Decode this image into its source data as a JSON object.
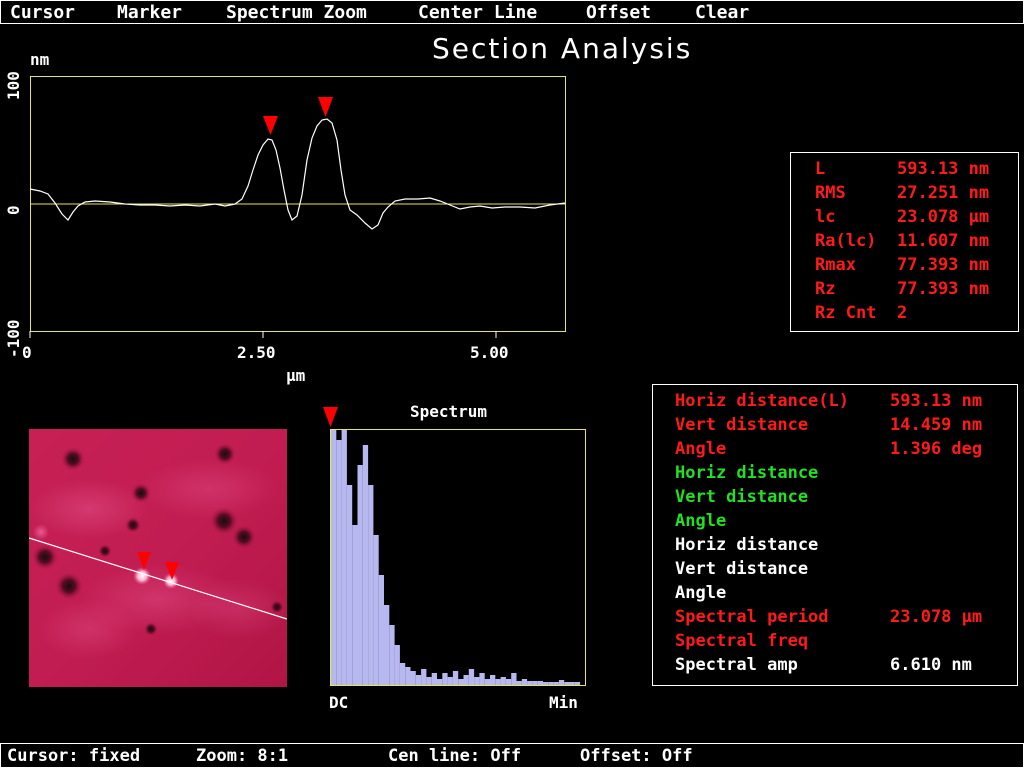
{
  "menu": [
    {
      "label": "Cursor"
    },
    {
      "label": "Marker"
    },
    {
      "label": "Spectrum Zoom"
    },
    {
      "label": "Center Line"
    },
    {
      "label": "Offset"
    },
    {
      "label": "Clear"
    }
  ],
  "title": "Section Analysis",
  "profile": {
    "yunit": "nm",
    "xunit": "µm",
    "yticks": [
      "100",
      "0",
      "-100"
    ],
    "xticks": [
      "0",
      "2.50",
      "5.00"
    ],
    "line_color": "#ffffff",
    "axis_color": "#e6e65a",
    "marker_color": "#ff0000"
  },
  "stats": [
    {
      "label": "L",
      "value": "593.13 nm"
    },
    {
      "label": "RMS",
      "value": "27.251 nm"
    },
    {
      "label": "lc",
      "value": "23.078 µm"
    },
    {
      "label": "Ra(lc)",
      "value": "11.607 nm"
    },
    {
      "label": "Rmax",
      "value": "77.393 nm"
    },
    {
      "label": "Rz",
      "value": "77.393 nm"
    },
    {
      "label": "Rz Cnt",
      "value": "2"
    }
  ],
  "spectrum": {
    "title": "Spectrum",
    "xlabel_left": "DC",
    "xlabel_right": "Min",
    "bar_color": "#b8b8f0"
  },
  "measurements": [
    {
      "label": "Horiz distance(L)",
      "value": "593.13 nm",
      "color": "red"
    },
    {
      "label": "Vert distance",
      "value": "14.459 nm",
      "color": "red"
    },
    {
      "label": "Angle",
      "value": "1.396 deg",
      "color": "red"
    },
    {
      "label": "Horiz distance",
      "value": "",
      "color": "green"
    },
    {
      "label": "Vert distance",
      "value": "",
      "color": "green"
    },
    {
      "label": "Angle",
      "value": "",
      "color": "green"
    },
    {
      "label": "Horiz distance",
      "value": "",
      "color": "white"
    },
    {
      "label": "Vert distance",
      "value": "",
      "color": "white"
    },
    {
      "label": "Angle",
      "value": "",
      "color": "white"
    },
    {
      "label": "Spectral period",
      "value": "23.078 µm",
      "color": "red"
    },
    {
      "label": "Spectral freq",
      "value": "",
      "color": "red"
    },
    {
      "label": "Spectral amp",
      "value": "6.610 nm",
      "color": "white"
    }
  ],
  "status": {
    "cursor": "Cursor: fixed",
    "zoom": "Zoom: 8:1",
    "cen_line": "Cen line: Off",
    "offset": "Offset: Off"
  }
}
